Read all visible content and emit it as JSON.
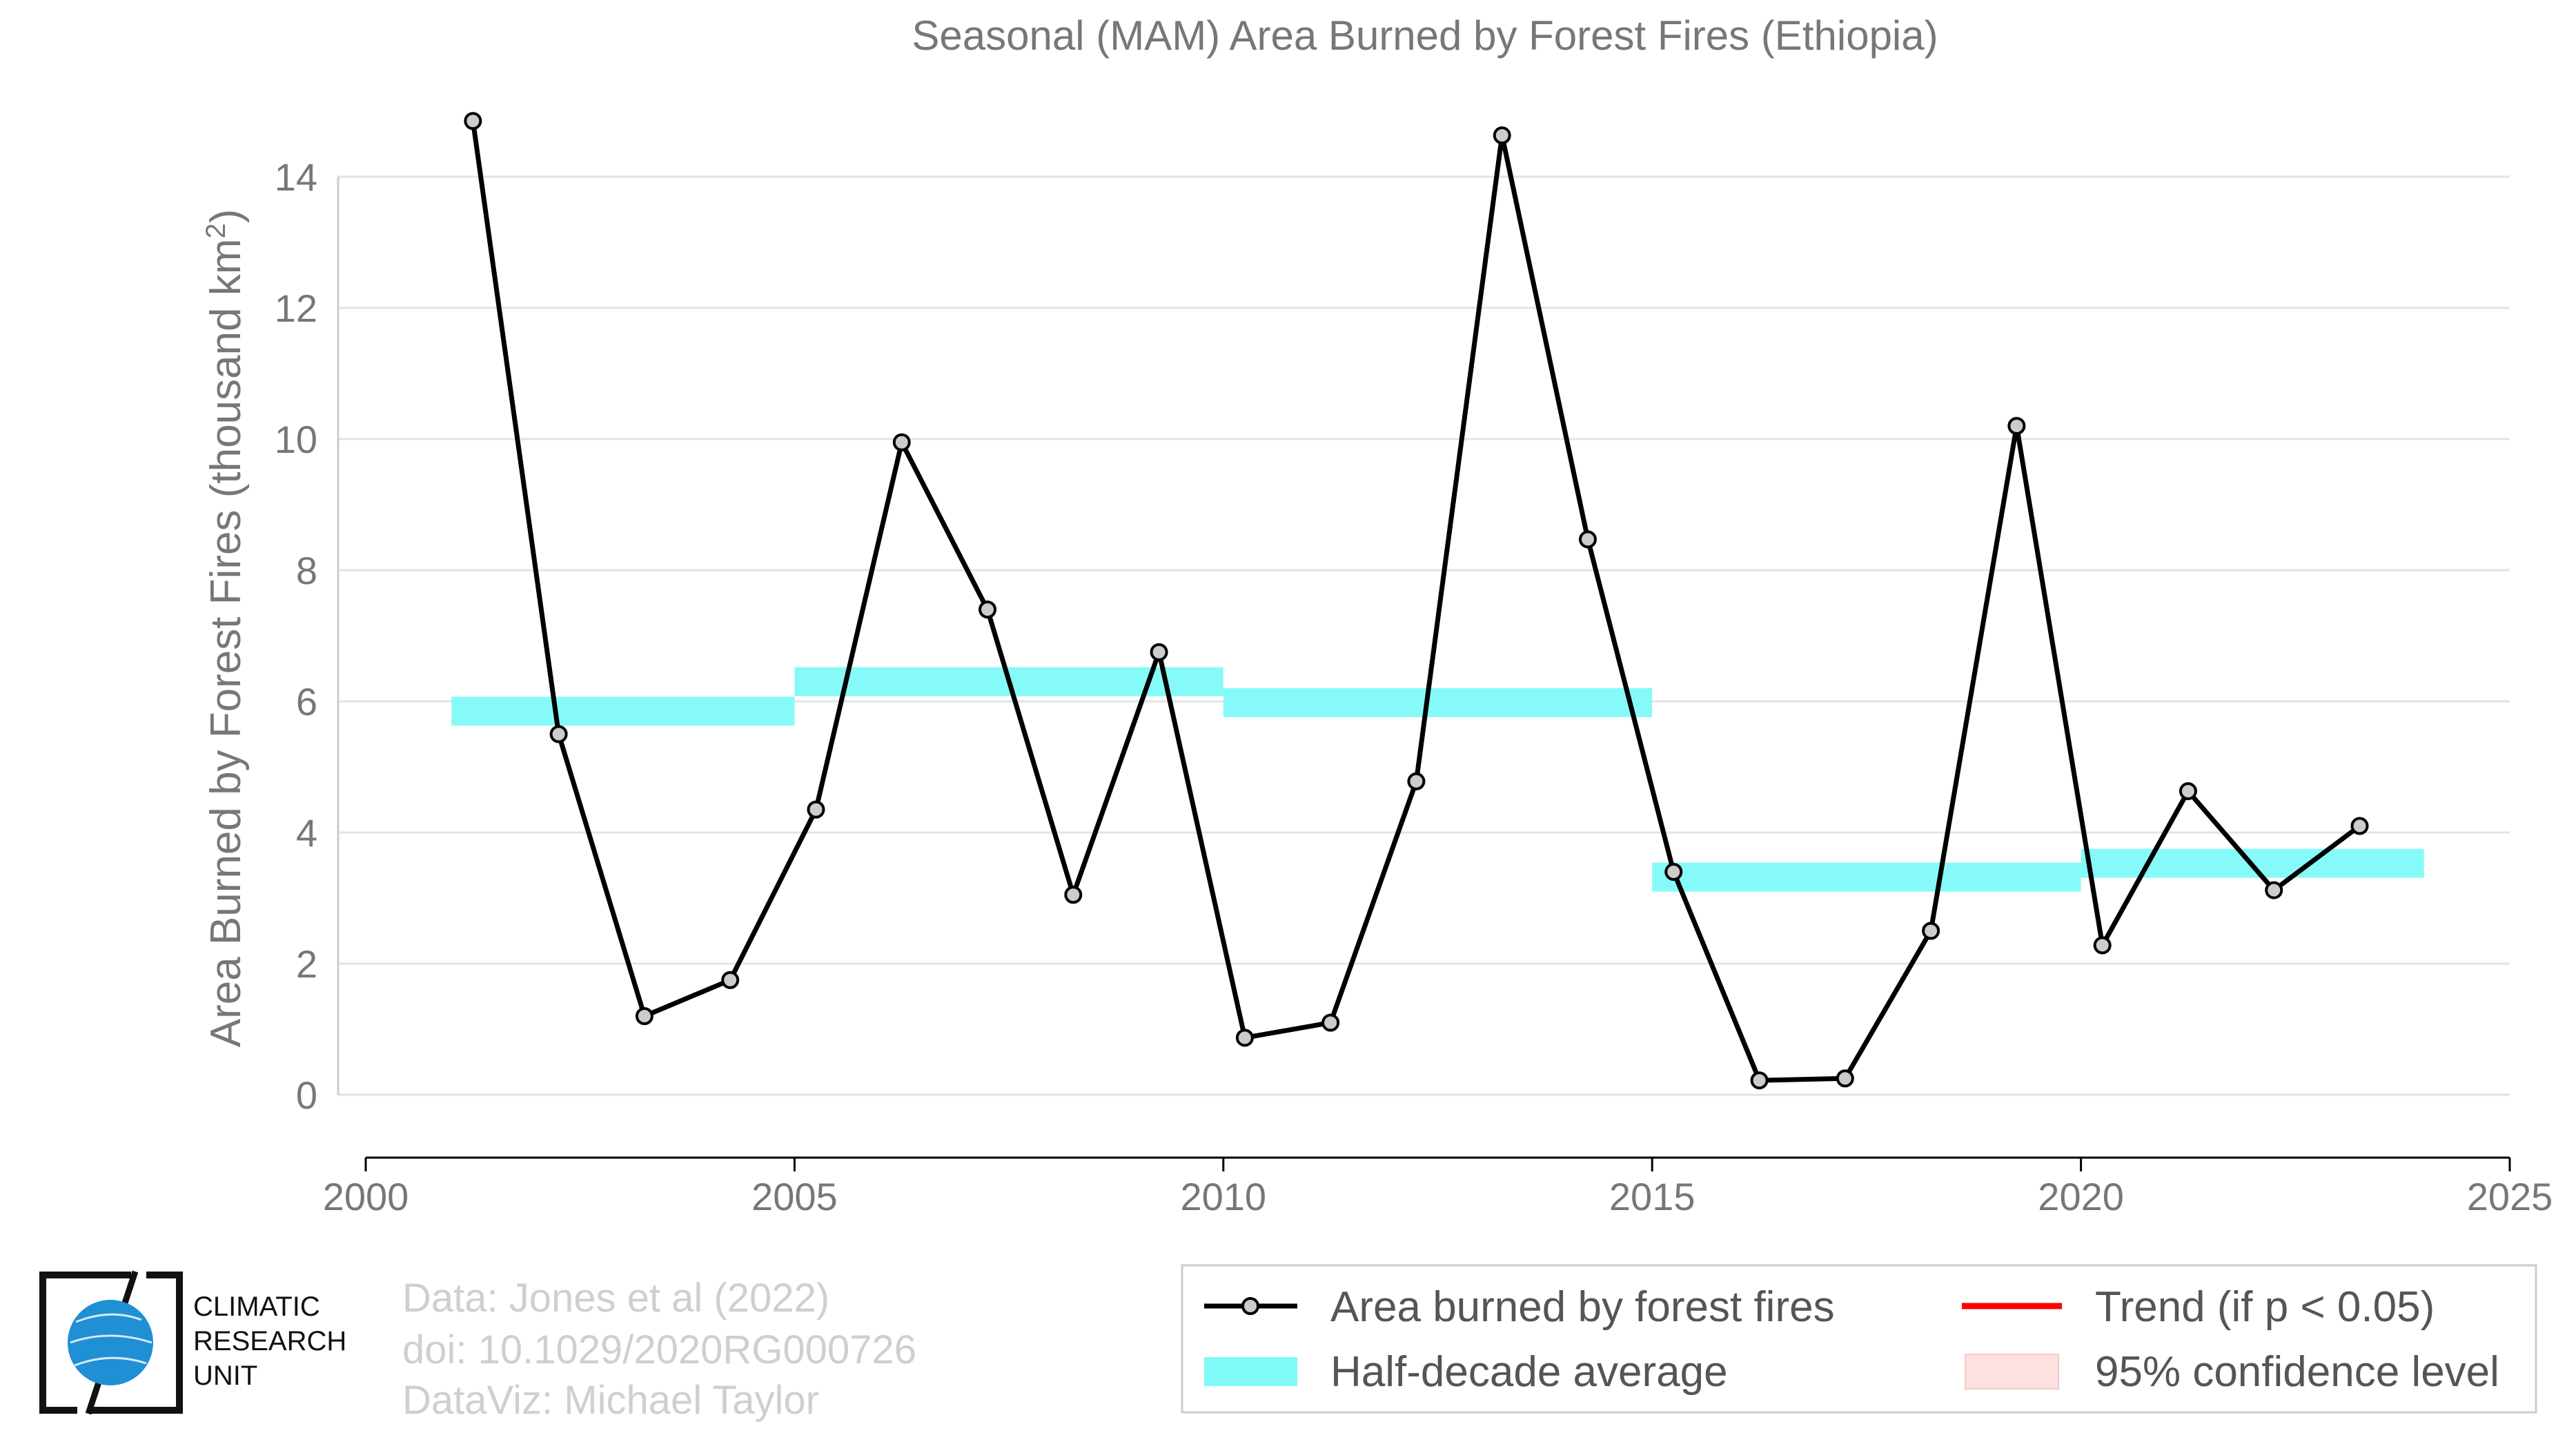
{
  "chart_data": {
    "type": "line",
    "title": "Seasonal (MAM) Area Burned by Forest Fires (Ethiopia)",
    "xlabel": "",
    "ylabel": "Area Burned by Forest Fires (thousand km",
    "ylabel_sup": "2",
    "ylabel_close": ")",
    "xlim": [
      2000,
      2025
    ],
    "ylim": [
      -1,
      15
    ],
    "xticks": [
      2000,
      2005,
      2010,
      2015,
      2020,
      2025
    ],
    "yticks": [
      0,
      2,
      4,
      6,
      8,
      10,
      12,
      14
    ],
    "grid": "horizontal",
    "legend_position": "bottom",
    "series": [
      {
        "name": "Area burned by forest fires",
        "color": "#000000",
        "marker_fill": "#cccccc",
        "x": [
          2001.25,
          2002.25,
          2003.25,
          2004.25,
          2005.25,
          2006.25,
          2007.25,
          2008.25,
          2009.25,
          2010.25,
          2011.25,
          2012.25,
          2013.25,
          2014.25,
          2015.25,
          2016.25,
          2017.25,
          2018.25,
          2019.25,
          2020.25,
          2021.25,
          2022.25,
          2023.25
        ],
        "y": [
          14.85,
          5.5,
          1.2,
          1.75,
          4.35,
          9.95,
          7.4,
          3.05,
          6.75,
          0.87,
          1.1,
          4.78,
          14.63,
          8.47,
          3.4,
          0.22,
          0.25,
          2.5,
          10.2,
          2.28,
          4.63,
          3.12,
          4.1
        ]
      },
      {
        "name": "Half-decade average",
        "color": "#7ffaf9",
        "segments": [
          {
            "x0": 2001,
            "x1": 2005,
            "y": 5.85
          },
          {
            "x0": 2005,
            "x1": 2010,
            "y": 6.3
          },
          {
            "x0": 2010,
            "x1": 2015,
            "y": 5.98
          },
          {
            "x0": 2015,
            "x1": 2020,
            "y": 3.32
          },
          {
            "x0": 2020,
            "x1": 2024,
            "y": 3.53
          }
        ]
      }
    ],
    "legend": [
      {
        "label": "Area burned by forest fires",
        "kind": "line-marker",
        "color": "#000000"
      },
      {
        "label": "Trend (if p < 0.05)",
        "kind": "line",
        "color": "#ff0000"
      },
      {
        "label": "Half-decade average",
        "kind": "band",
        "color": "#7ffaf9"
      },
      {
        "label": "95% confidence level",
        "kind": "band",
        "color": "#fde0e0"
      }
    ]
  },
  "credits": {
    "line1": "Data: Jones et al (2022)",
    "line2": "doi: 10.1029/2020RG000726",
    "line3": "DataViz: Michael Taylor"
  },
  "logo": {
    "line1": "CLIMATIC",
    "line2": "RESEARCH",
    "line3": "UNIT",
    "color": "#1f8fd6"
  }
}
